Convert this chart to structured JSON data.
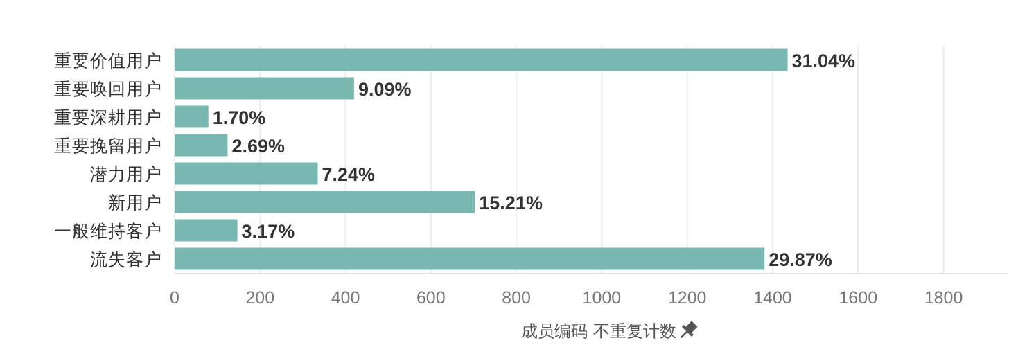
{
  "chart_data": {
    "type": "bar",
    "orientation": "horizontal",
    "xlabel": "成员编码 不重复计数",
    "categories": [
      "重要价值用户",
      "重要唤回用户",
      "重要深耕用户",
      "重要挽留用户",
      "潜力用户",
      "新用户",
      "一般维持客户",
      "流失客户"
    ],
    "values": [
      1435,
      420,
      79,
      124,
      335,
      703,
      147,
      1381
    ],
    "annotations": [
      {
        "text": "31.04%",
        "x": 1435,
        "y": "重要价值用户"
      },
      {
        "text": "9.09%",
        "x": 420,
        "y": "重要唤回用户"
      },
      {
        "text": "1.70%",
        "x": 79,
        "y": "重要深耕用户"
      },
      {
        "text": "2.69%",
        "x": 124,
        "y": "重要挽留用户"
      },
      {
        "text": "7.24%",
        "x": 335,
        "y": "潜力用户"
      },
      {
        "text": "15.21%",
        "x": 703,
        "y": "新用户"
      },
      {
        "text": "3.17%",
        "x": 147,
        "y": "一般维持客户"
      },
      {
        "text": "29.87%",
        "x": 1381,
        "y": "流失客户"
      }
    ],
    "color": "#79b8b1",
    "xlim": [
      0,
      1950
    ],
    "xticks": [
      0,
      200,
      400,
      600,
      800,
      1000,
      1200,
      1400,
      1600,
      1800
    ],
    "grid": "x"
  }
}
